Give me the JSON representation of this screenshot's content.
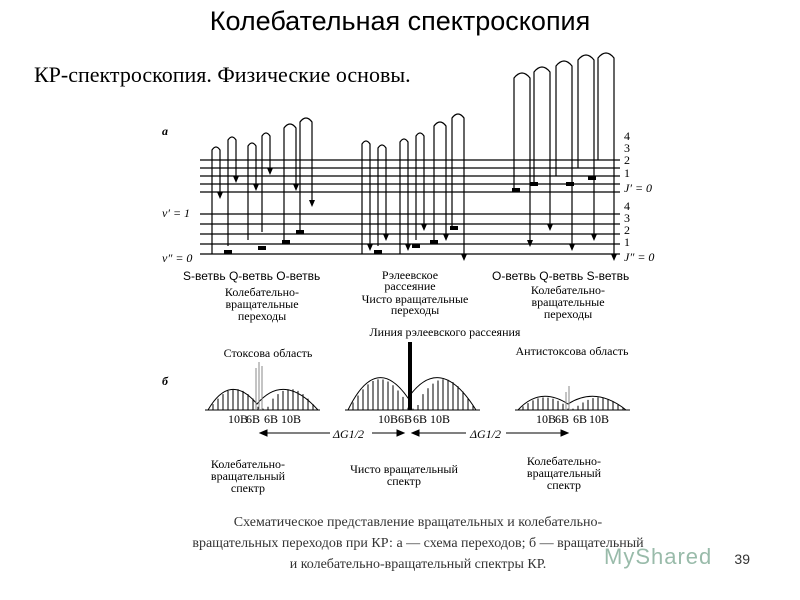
{
  "header": {
    "title": "Колебательная спектроскопия",
    "subtitle": "КР-спектроскопия. Физические основы."
  },
  "panel_a": {
    "letter": "а",
    "v_upper": "v′ = 1",
    "v_lower": "v″ = 0",
    "j_upper": [
      "4",
      "3",
      "2",
      "1",
      "J′ = 0"
    ],
    "j_lower": [
      "4",
      "3",
      "2",
      "1",
      "J″ = 0"
    ],
    "branches_left": "S-ветвь Q-ветвь O-ветвь",
    "branches_right": "O-ветвь Q-ветвь S-ветвь",
    "rayleigh": [
      "Рэлеевское",
      "рассеяние"
    ],
    "pure_rot": [
      "Чисто вращательные",
      "переходы"
    ],
    "vib_rot_left": [
      "Колебательно-",
      "вращательные",
      "переходы"
    ],
    "vib_rot_right": [
      "Колебательно-",
      "вращательные",
      "переходы"
    ]
  },
  "panel_b": {
    "letter": "б",
    "rayleigh_line": "Линия рэлеевского рассеяния",
    "stokes": "Стоксова область",
    "antistokes": "Антистоксова область",
    "ticks_left": [
      "10B",
      "6B",
      "6B",
      "10B"
    ],
    "ticks_center": [
      "10B",
      "6B",
      "6B",
      "10B"
    ],
    "ticks_right": [
      "10B",
      "6B",
      "6B",
      "10B"
    ],
    "delta_g": "ΔG1/2",
    "vib_spec_left": [
      "Колебательно-",
      "вращательный",
      "спектр"
    ],
    "pure_spec": [
      "Чисто вращательный",
      "спектр"
    ],
    "vib_spec_right": [
      "Колебательно-",
      "вращательный",
      "спектр"
    ]
  },
  "caption": [
    "Схематическое представление вращательных и колебательно-",
    "вращательных переходов при КР: а — схема переходов; б — вращательный",
    "и колебательно-вращательный спектры КР."
  ],
  "page_number": "39",
  "watermark": "MyShared"
}
